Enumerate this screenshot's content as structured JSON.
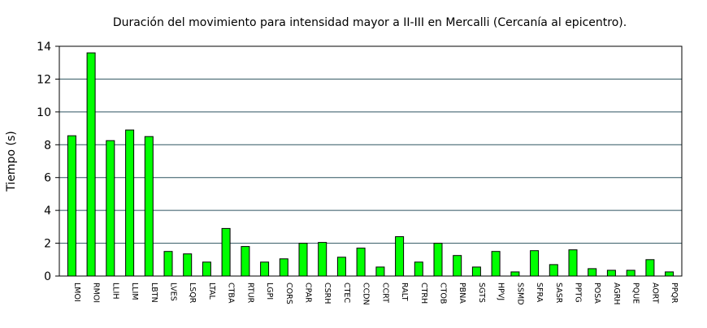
{
  "chart_data": {
    "type": "bar",
    "title": "Duración del movimiento para intensidad mayor a II-III en Mercalli (Cercanía al epicentro).",
    "xlabel": "",
    "ylabel": "Tiempo (s)",
    "ylim": [
      0,
      14
    ],
    "yticks": [
      "0",
      "2",
      "4",
      "6",
      "8",
      "10",
      "12",
      "14"
    ],
    "grid": "horizontal",
    "bar_color": "#00ff00",
    "grid_color": "#2f5560",
    "categories": [
      "LMOI",
      "RMOI",
      "LLIH",
      "LLIM",
      "LBTN",
      "LVES",
      "LSQR",
      "LTAL",
      "CTBA",
      "RTUR",
      "LGPI",
      "CORS",
      "CPAR",
      "CSRH",
      "CTEC",
      "CCDN",
      "CCRT",
      "RALT",
      "CTRH",
      "CTOB",
      "PBNA",
      "SGTS",
      "HPVJ",
      "SSMD",
      "SFRA",
      "SASR",
      "PPTG",
      "POSA",
      "AGRH",
      "PQUE",
      "AORT",
      "PPQR"
    ],
    "values": [
      8.55,
      13.6,
      8.25,
      8.9,
      8.5,
      1.5,
      1.35,
      0.85,
      2.9,
      1.8,
      0.85,
      1.05,
      2.0,
      2.05,
      1.15,
      1.7,
      0.55,
      2.4,
      0.85,
      2.0,
      1.25,
      0.55,
      1.5,
      0.25,
      1.55,
      0.7,
      1.6,
      0.45,
      0.35,
      0.35,
      1.0,
      0.25
    ]
  }
}
